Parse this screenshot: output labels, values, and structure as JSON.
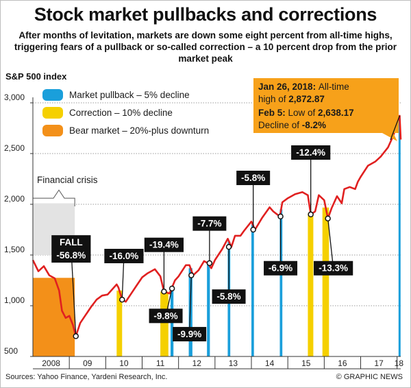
{
  "title": "Stock market pullbacks and corrections",
  "subtitle": "After months of levitation, markets are down some eight percent from all-time highs, triggering fears of a pullback or so-called correction – a 10 percent drop from the prior market peak",
  "footer": {
    "sources": "Sources: Yahoo Finance, Yardeni Research, Inc.",
    "credit": "© GRAPHIC NEWS"
  },
  "chart_data": {
    "type": "line",
    "ylabel": "S&P 500 index",
    "ylim": [
      500,
      3000
    ],
    "yticks": [
      500,
      1000,
      1500,
      2000,
      2500,
      3000
    ],
    "ytick_labels": [
      "500",
      "1,000",
      "1,500",
      "2,000",
      "2,500",
      "3,000"
    ],
    "xlim": [
      2008,
      2018.1
    ],
    "xticks": [
      2008.5,
      2009.5,
      2010.5,
      2011.5,
      2012.5,
      2013.5,
      2014.5,
      2015.5,
      2016.5,
      2017.5,
      2018.05
    ],
    "xtick_labels": [
      "2008",
      "09",
      "10",
      "11",
      "12",
      "13",
      "14",
      "15",
      "16",
      "17",
      "18"
    ],
    "grid": true,
    "legend_position": "top-left",
    "legend": [
      {
        "label": "Market pullback – 5% decline",
        "color": "#1a9fdb"
      },
      {
        "label": "Correction – 10% decline",
        "color": "#f5d000"
      },
      {
        "label": "Bear market – 20%-plus downturn",
        "color": "#f39019"
      }
    ],
    "series": [
      {
        "color": "#e02020",
        "points": [
          [
            2008.0,
            1450
          ],
          [
            2008.15,
            1340
          ],
          [
            2008.3,
            1390
          ],
          [
            2008.45,
            1300
          ],
          [
            2008.6,
            1270
          ],
          [
            2008.72,
            1150
          ],
          [
            2008.8,
            950
          ],
          [
            2008.9,
            880
          ],
          [
            2009.0,
            900
          ],
          [
            2009.1,
            810
          ],
          [
            2009.18,
            700
          ],
          [
            2009.3,
            830
          ],
          [
            2009.45,
            910
          ],
          [
            2009.6,
            990
          ],
          [
            2009.75,
            1060
          ],
          [
            2009.9,
            1100
          ],
          [
            2010.05,
            1110
          ],
          [
            2010.3,
            1210
          ],
          [
            2010.35,
            1180
          ],
          [
            2010.45,
            1060
          ],
          [
            2010.55,
            1040
          ],
          [
            2010.7,
            1120
          ],
          [
            2010.85,
            1200
          ],
          [
            2011.0,
            1280
          ],
          [
            2011.15,
            1320
          ],
          [
            2011.35,
            1360
          ],
          [
            2011.5,
            1290
          ],
          [
            2011.6,
            1140
          ],
          [
            2011.75,
            1120
          ],
          [
            2011.9,
            1250
          ],
          [
            2012.0,
            1290
          ],
          [
            2012.2,
            1400
          ],
          [
            2012.3,
            1400
          ],
          [
            2012.4,
            1300
          ],
          [
            2012.55,
            1350
          ],
          [
            2012.7,
            1440
          ],
          [
            2012.8,
            1420
          ],
          [
            2012.9,
            1370
          ],
          [
            2013.0,
            1450
          ],
          [
            2013.2,
            1560
          ],
          [
            2013.35,
            1660
          ],
          [
            2013.45,
            1580
          ],
          [
            2013.55,
            1690
          ],
          [
            2013.7,
            1690
          ],
          [
            2013.8,
            1740
          ],
          [
            2014.0,
            1830
          ],
          [
            2014.1,
            1750
          ],
          [
            2014.3,
            1870
          ],
          [
            2014.5,
            1970
          ],
          [
            2014.6,
            1930
          ],
          [
            2014.78,
            1880
          ],
          [
            2014.85,
            2020
          ],
          [
            2015.0,
            2060
          ],
          [
            2015.2,
            2100
          ],
          [
            2015.4,
            2120
          ],
          [
            2015.55,
            2090
          ],
          [
            2015.63,
            1900
          ],
          [
            2015.75,
            1930
          ],
          [
            2015.85,
            2090
          ],
          [
            2016.0,
            2040
          ],
          [
            2016.1,
            1860
          ],
          [
            2016.2,
            1960
          ],
          [
            2016.35,
            2080
          ],
          [
            2016.48,
            2010
          ],
          [
            2016.55,
            2150
          ],
          [
            2016.7,
            2170
          ],
          [
            2016.85,
            2150
          ],
          [
            2016.92,
            2220
          ],
          [
            2017.0,
            2270
          ],
          [
            2017.2,
            2380
          ],
          [
            2017.4,
            2420
          ],
          [
            2017.55,
            2470
          ],
          [
            2017.75,
            2560
          ],
          [
            2017.9,
            2680
          ],
          [
            2018.0,
            2800
          ],
          [
            2018.07,
            2872.87
          ],
          [
            2018.1,
            2638.17
          ]
        ]
      }
    ],
    "bands": [
      {
        "type": "bear",
        "color": "#f39019",
        "x0": 2008.0,
        "x1": 2009.15
      },
      {
        "type": "correction",
        "color": "#f5d000",
        "x0": 2010.3,
        "x1": 2010.45
      },
      {
        "type": "correction",
        "color": "#f5d000",
        "x0": 2011.5,
        "x1": 2011.72
      },
      {
        "type": "correction",
        "color": "#f5d000",
        "x0": 2015.55,
        "x1": 2015.7
      },
      {
        "type": "correction",
        "color": "#f5d000",
        "x0": 2015.95,
        "x1": 2016.13
      },
      {
        "type": "pullback",
        "color": "#1a9fdb",
        "x0": 2011.78,
        "x1": 2011.86
      },
      {
        "type": "pullback",
        "color": "#1a9fdb",
        "x0": 2012.28,
        "x1": 2012.38
      },
      {
        "type": "pullback",
        "color": "#1a9fdb",
        "x0": 2012.78,
        "x1": 2012.86
      },
      {
        "type": "pullback",
        "color": "#1a9fdb",
        "x0": 2013.35,
        "x1": 2013.42
      },
      {
        "type": "pullback",
        "color": "#1a9fdb",
        "x0": 2014.0,
        "x1": 2014.07
      },
      {
        "type": "pullback",
        "color": "#1a9fdb",
        "x0": 2014.78,
        "x1": 2014.85
      },
      {
        "type": "pullback",
        "color": "#1a9fdb",
        "x0": 2018.04,
        "x1": 2018.09
      }
    ],
    "annotations": [
      {
        "label": "FALL\n-56.8%",
        "x": 2009.18,
        "y": 700,
        "box_x": 2009.05,
        "box_y": 1560,
        "lines": 2
      },
      {
        "label": "-16.0%",
        "x": 2010.45,
        "y": 1060,
        "box_x": 2010.5,
        "box_y": 1490
      },
      {
        "label": "-19.4%",
        "x": 2011.6,
        "y": 1140,
        "box_x": 2011.6,
        "box_y": 1600
      },
      {
        "label": "-9.8%",
        "x": 2011.82,
        "y": 1170,
        "box_x": 2011.65,
        "box_y": 900
      },
      {
        "label": "-9.9%",
        "x": 2012.35,
        "y": 1300,
        "box_x": 2012.3,
        "box_y": 720
      },
      {
        "label": "-7.7%",
        "x": 2012.85,
        "y": 1420,
        "box_x": 2012.85,
        "box_y": 1810
      },
      {
        "label": "-5.8%",
        "x": 2013.38,
        "y": 1580,
        "box_x": 2013.38,
        "box_y": 1090
      },
      {
        "label": "-5.8%",
        "x": 2014.05,
        "y": 1750,
        "box_x": 2014.05,
        "box_y": 2260
      },
      {
        "label": "-6.9%",
        "x": 2014.8,
        "y": 1880,
        "box_x": 2014.8,
        "box_y": 1370
      },
      {
        "label": "-12.4%",
        "x": 2015.63,
        "y": 1900,
        "box_x": 2015.63,
        "box_y": 2510
      },
      {
        "label": "-13.3%",
        "x": 2016.1,
        "y": 1860,
        "box_x": 2016.25,
        "box_y": 1370
      }
    ],
    "financial_crisis": {
      "label": "Financial crisis",
      "x0": 2008.0,
      "x1": 2009.15
    },
    "callout": {
      "line1_date": "Jan 26, 2018:",
      "line1_text": "All-time",
      "line2_text": "high of",
      "line2_value": "2,872.87",
      "line3_date": "Feb 5:",
      "line3_text": "Low of",
      "line3_value": "2,638.17",
      "line4_text": "Decline of",
      "line4_value": "-8.2%",
      "color": "#f7a11a",
      "x": 2018.07,
      "y": 2872.87
    }
  }
}
